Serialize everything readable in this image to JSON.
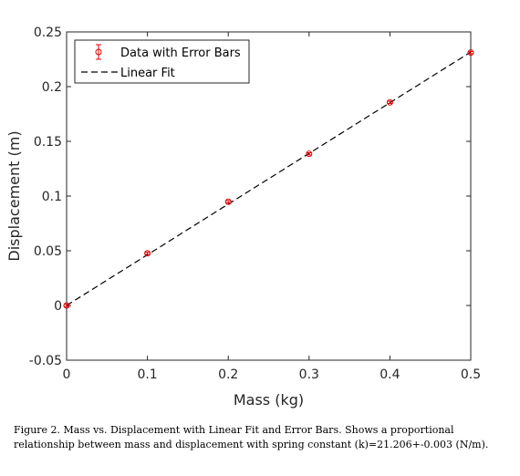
{
  "chart_data": {
    "type": "scatter",
    "xlabel": "Mass (kg)",
    "ylabel": "Displacement (m)",
    "xlim": [
      0,
      0.5
    ],
    "ylim": [
      -0.05,
      0.25
    ],
    "xticks": [
      0,
      0.1,
      0.2,
      0.3,
      0.4,
      0.5
    ],
    "xtick_labels": [
      "0",
      "0.1",
      "0.2",
      "0.3",
      "0.4",
      "0.5"
    ],
    "yticks": [
      -0.05,
      0,
      0.05,
      0.1,
      0.15,
      0.2,
      0.25
    ],
    "ytick_labels": [
      "-0.05",
      "0",
      "0.05",
      "0.1",
      "0.15",
      "0.2",
      "0.25"
    ],
    "grid": false,
    "legend_position": "top-left",
    "series": [
      {
        "name": "Data with Error Bars",
        "marker": "circle",
        "color": "#e00000",
        "x": [
          0,
          0.1,
          0.2,
          0.3,
          0.4,
          0.5
        ],
        "y": [
          0.0,
          0.0477,
          0.0948,
          0.1386,
          0.1856,
          0.2311
        ],
        "error": [
          0.001,
          0.001,
          0.001,
          0.001,
          0.001,
          0.001
        ]
      },
      {
        "name": "Linear Fit",
        "line_style": "dashed",
        "color": "#000000",
        "x": [
          0,
          0.5
        ],
        "y": [
          0.0,
          0.2316
        ]
      }
    ]
  },
  "caption": "Figure 2. Mass vs. Displacement with Linear Fit and Error Bars. Shows a proportional relationship between mass and displacement with spring constant (k)=21.206+-0.003 (N/m)."
}
